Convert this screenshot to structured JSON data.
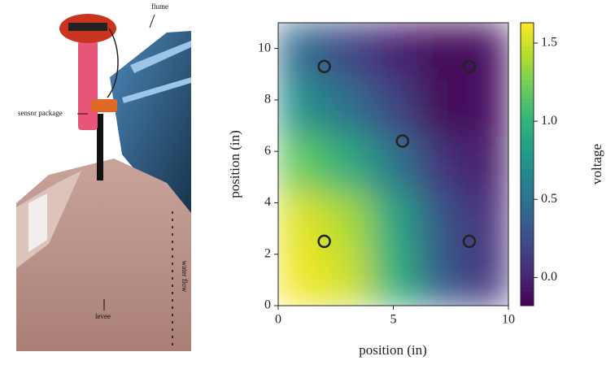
{
  "photo": {
    "labels": {
      "flume": "flume",
      "sensor": "sensor package",
      "levee": "levee",
      "flow": "water flow"
    }
  },
  "chart_data": {
    "type": "heatmap",
    "xlabel": "position (in)",
    "ylabel": "position (in)",
    "colorbar_label": "voltage",
    "colormap": "viridis",
    "xlim": [
      0,
      10
    ],
    "xticks": [
      0,
      5,
      10
    ],
    "ylim": [
      0,
      11
    ],
    "yticks": [
      0,
      2,
      4,
      6,
      8,
      10
    ],
    "x_edges": [
      0,
      2,
      4,
      6,
      8,
      10
    ],
    "y_edges": [
      0,
      2.2,
      4.4,
      6.6,
      8.8,
      11
    ],
    "z": [
      [
        1.6,
        1.5,
        1.0,
        0.35,
        0.1
      ],
      [
        1.55,
        1.4,
        0.9,
        0.3,
        0.05
      ],
      [
        1.2,
        0.95,
        0.55,
        0.1,
        -0.05
      ],
      [
        0.75,
        0.5,
        0.2,
        -0.15,
        -0.1
      ],
      [
        0.45,
        0.2,
        0.0,
        -0.15,
        -0.1
      ]
    ],
    "zlim": [
      -0.18,
      1.63
    ],
    "zticks": [
      {
        "value": 0,
        "label": "0.0"
      },
      0.5,
      {
        "value": 1,
        "label": "1.0"
      },
      1.5
    ],
    "markers": {
      "x": [
        2,
        2,
        5.4,
        8.3,
        8.3
      ],
      "y": [
        2.5,
        9.3,
        6.4,
        2.5,
        9.3
      ]
    }
  }
}
